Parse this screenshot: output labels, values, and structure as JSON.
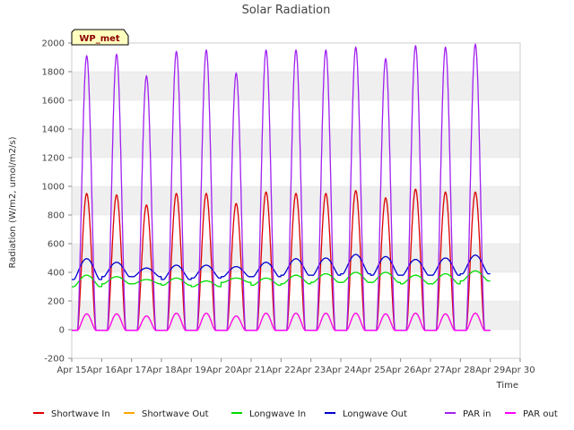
{
  "chart_data": {
    "type": "line",
    "title": "Solar Radiation",
    "xlabel": "Time",
    "ylabel": "Radiation (W/m2, umol/m2/s)",
    "tag": "WP_met",
    "xlim": [
      15,
      30
    ],
    "ylim": [
      -200,
      2000
    ],
    "x_tick_values": [
      15,
      16,
      17,
      18,
      19,
      20,
      21,
      22,
      23,
      24,
      25,
      26,
      27,
      28,
      29,
      30
    ],
    "x_ticks": [
      "Apr 15",
      "Apr 16",
      "Apr 17",
      "Apr 18",
      "Apr 19",
      "Apr 20",
      "Apr 21",
      "Apr 22",
      "Apr 23",
      "Apr 24",
      "Apr 25",
      "Apr 26",
      "Apr 27",
      "Apr 28",
      "Apr 29",
      "Apr 30"
    ],
    "y_ticks": [
      -200,
      0,
      200,
      400,
      600,
      800,
      1000,
      1200,
      1400,
      1600,
      1800,
      2000
    ],
    "grid": "horizontal bands",
    "legend_position": "bottom",
    "days": [
      15.5,
      16.5,
      17.5,
      18.5,
      19.5,
      20.5,
      21.5,
      22.5,
      23.5,
      24.5,
      25.5,
      26.5,
      27.5,
      28.5
    ],
    "series": [
      {
        "name": "Shortwave In",
        "color": "#dd0000",
        "kind": "peak",
        "peaks": [
          950,
          940,
          870,
          950,
          950,
          880,
          960,
          950,
          950,
          970,
          920,
          980,
          960,
          960
        ],
        "night": -5
      },
      {
        "name": "Shortwave Out",
        "color": "#ffa500",
        "kind": "peak",
        "peaks": [
          110,
          110,
          95,
          115,
          115,
          95,
          115,
          115,
          115,
          115,
          110,
          115,
          110,
          115
        ],
        "night": -5
      },
      {
        "name": "Longwave In",
        "color": "#00dd00",
        "kind": "baseline",
        "day_values": [
          380,
          370,
          350,
          360,
          340,
          360,
          360,
          380,
          390,
          400,
          400,
          380,
          390,
          410
        ],
        "night_values": [
          300,
          320,
          320,
          310,
          300,
          330,
          310,
          320,
          330,
          330,
          330,
          320,
          320,
          340
        ]
      },
      {
        "name": "Longwave Out",
        "color": "#0000cc",
        "kind": "baseline",
        "day_values": [
          495,
          470,
          430,
          450,
          450,
          440,
          470,
          495,
          500,
          525,
          510,
          490,
          500,
          520
        ],
        "night_values": [
          350,
          370,
          370,
          350,
          360,
          370,
          370,
          380,
          380,
          390,
          380,
          380,
          380,
          390
        ]
      },
      {
        "name": "PAR in",
        "color": "#a020f0",
        "kind": "peak",
        "peaks": [
          1910,
          1920,
          1770,
          1940,
          1950,
          1790,
          1950,
          1950,
          1950,
          1970,
          1890,
          1980,
          1970,
          1990
        ],
        "night": -5
      },
      {
        "name": "PAR out",
        "color": "#ff00ff",
        "kind": "peak",
        "peaks": [
          110,
          110,
          95,
          115,
          115,
          95,
          115,
          115,
          115,
          115,
          110,
          115,
          110,
          115
        ],
        "night": -5
      }
    ]
  }
}
